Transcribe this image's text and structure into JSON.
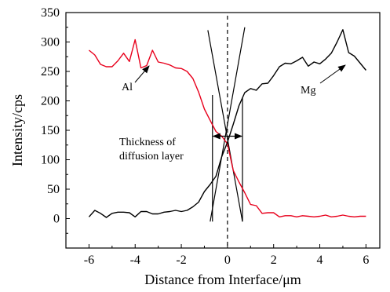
{
  "chart_data": {
    "type": "line",
    "xlabel": "Distance from Interface/μm",
    "ylabel": "Intensity/cps",
    "xlim": [
      -7,
      6.6
    ],
    "ylim": [
      -50,
      350
    ],
    "xticks": [
      -6,
      -4,
      -2,
      0,
      2,
      4,
      6
    ],
    "yticks": [
      0,
      50,
      100,
      150,
      200,
      250,
      300,
      350
    ],
    "grid": false,
    "series": [
      {
        "name": "Al",
        "color": "#e8001c",
        "x": [
          -6.0,
          -5.75,
          -5.5,
          -5.25,
          -5.0,
          -4.75,
          -4.5,
          -4.25,
          -4.0,
          -3.75,
          -3.5,
          -3.25,
          -3.0,
          -2.75,
          -2.5,
          -2.25,
          -2.0,
          -1.75,
          -1.5,
          -1.25,
          -1.0,
          -0.75,
          -0.5,
          -0.25,
          0.0,
          0.25,
          0.5,
          0.75,
          1.0,
          1.25,
          1.5,
          1.75,
          2.0,
          2.25,
          2.5,
          2.75,
          3.0,
          3.25,
          3.5,
          3.75,
          4.0,
          4.25,
          4.5,
          4.75,
          5.0,
          5.25,
          5.5,
          5.75,
          6.0
        ],
        "y": [
          286,
          278,
          262,
          258,
          258,
          268,
          281,
          267,
          304,
          256,
          260,
          286,
          266,
          264,
          261,
          256,
          255,
          250,
          238,
          215,
          186,
          167,
          148,
          140,
          127,
          82,
          62,
          44,
          24,
          22,
          9,
          10,
          10,
          3,
          5,
          5,
          3,
          5,
          4,
          3,
          4,
          6,
          3,
          4,
          6,
          4,
          3,
          4,
          4
        ]
      },
      {
        "name": "Mg",
        "color": "#000000",
        "x": [
          -6.0,
          -5.75,
          -5.5,
          -5.25,
          -5.0,
          -4.75,
          -4.5,
          -4.25,
          -4.0,
          -3.75,
          -3.5,
          -3.25,
          -3.0,
          -2.75,
          -2.5,
          -2.25,
          -2.0,
          -1.75,
          -1.5,
          -1.25,
          -1.0,
          -0.75,
          -0.5,
          -0.25,
          0.0,
          0.25,
          0.5,
          0.75,
          1.0,
          1.25,
          1.5,
          1.75,
          2.0,
          2.25,
          2.5,
          2.75,
          3.0,
          3.25,
          3.5,
          3.75,
          4.0,
          4.25,
          4.5,
          4.75,
          5.0,
          5.25,
          5.5,
          5.75,
          6.0
        ],
        "y": [
          3,
          14,
          9,
          2,
          9,
          11,
          11,
          10,
          3,
          12,
          12,
          8,
          8,
          11,
          12,
          14,
          12,
          14,
          20,
          28,
          46,
          58,
          72,
          105,
          130,
          160,
          192,
          214,
          221,
          218,
          229,
          230,
          243,
          258,
          264,
          263,
          268,
          274,
          259,
          266,
          263,
          271,
          281,
          300,
          321,
          282,
          276,
          264,
          252
        ]
      }
    ],
    "annotations": {
      "al_label": "Al",
      "mg_label": "Mg",
      "thickness_line1": "Thickness of",
      "thickness_line2": "diffusion layer",
      "interface_x": 0,
      "layer_bounds": [
        -0.65,
        0.65
      ]
    }
  }
}
